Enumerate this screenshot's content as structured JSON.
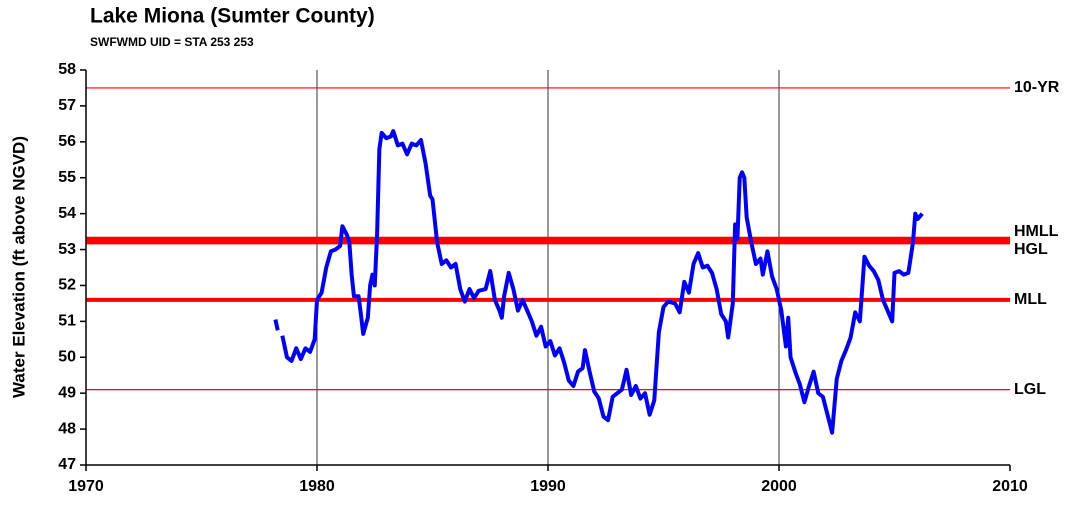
{
  "chart_data": {
    "type": "line",
    "title": "Lake Miona (Sumter County)",
    "subtitle": "SWFWMD UID = STA 253 253",
    "ylabel": "Water Elevation (ft above NGVD)",
    "xlim": [
      1970,
      2010
    ],
    "xticks": [
      1970,
      1980,
      1990,
      2000,
      2010
    ],
    "ylim": [
      47,
      58
    ],
    "yticks": [
      47,
      48,
      49,
      50,
      51,
      52,
      53,
      54,
      55,
      56,
      57,
      58
    ],
    "grid": "x",
    "reference_lines": [
      {
        "label": "10-YR",
        "value": 57.5,
        "color": "#ff0000",
        "thick": false
      },
      {
        "label": "HMLL",
        "value": 53.3,
        "color": "#ff0000",
        "thick": true
      },
      {
        "label": "HGL",
        "value": 53.2,
        "color": "#ff0000",
        "thick": true
      },
      {
        "label": "MLL",
        "value": 51.6,
        "color": "#ff0000",
        "thick": true
      },
      {
        "label": "LGL",
        "value": 49.1,
        "color": "#ff0000",
        "thick": false
      }
    ],
    "x": [
      1978.2,
      1978.3,
      1978.4,
      1978.5,
      1978.7,
      1978.9,
      1979.1,
      1979.3,
      1979.5,
      1979.7,
      1979.9,
      1980.0,
      1980.2,
      1980.4,
      1980.6,
      1980.8,
      1981.0,
      1981.1,
      1981.3,
      1981.4,
      1981.5,
      1981.6,
      1981.8,
      1981.9,
      1982.0,
      1982.2,
      1982.3,
      1982.4,
      1982.5,
      1982.6,
      1982.7,
      1982.8,
      1983.0,
      1983.2,
      1983.3,
      1983.5,
      1983.7,
      1983.9,
      1984.0,
      1984.1,
      1984.3,
      1984.5,
      1984.7,
      1984.9,
      1985.0,
      1985.2,
      1985.4,
      1985.6,
      1985.8,
      1986.0,
      1986.2,
      1986.4,
      1986.6,
      1986.8,
      1987.0,
      1987.3,
      1987.5,
      1987.7,
      1987.9,
      1988.0,
      1988.1,
      1988.3,
      1988.5,
      1988.7,
      1988.9,
      1989.1,
      1989.3,
      1989.5,
      1989.7,
      1989.9,
      1990.1,
      1990.3,
      1990.5,
      1990.7,
      1990.9,
      1991.1,
      1991.3,
      1991.5,
      1991.6,
      1991.8,
      1992.0,
      1992.2,
      1992.4,
      1992.6,
      1992.8,
      1993.0,
      1993.2,
      1993.4,
      1993.6,
      1993.8,
      1994.0,
      1994.2,
      1994.4,
      1994.6,
      1994.8,
      1995.0,
      1995.2,
      1995.5,
      1995.7,
      1995.9,
      1996.1,
      1996.3,
      1996.5,
      1996.7,
      1996.9,
      1997.1,
      1997.3,
      1997.5,
      1997.7,
      1997.8,
      1998.0,
      1998.1,
      1998.2,
      1998.3,
      1998.4,
      1998.5,
      1998.6,
      1998.8,
      1999.0,
      1999.2,
      1999.3,
      1999.5,
      1999.7,
      1999.9,
      2000.1,
      2000.3,
      2000.4,
      2000.5,
      2000.7,
      2000.9,
      2001.1,
      2001.3,
      2001.5,
      2001.7,
      2001.9,
      2002.1,
      2002.3,
      2002.5,
      2002.7,
      2002.9,
      2003.1,
      2003.3,
      2003.5,
      2003.7,
      2003.9,
      2004.1,
      2004.3,
      2004.5,
      2004.7,
      2004.9,
      2005.0,
      2005.2,
      2005.4,
      2005.6,
      2005.8,
      2005.9,
      2006.0,
      2006.2
    ],
    "series": [
      {
        "color": "#0000ff",
        "values": [
          51.05,
          50.75,
          null,
          50.6,
          50.0,
          49.9,
          50.25,
          49.95,
          50.25,
          50.15,
          50.5,
          51.6,
          51.8,
          52.5,
          52.95,
          53.0,
          53.1,
          53.65,
          53.4,
          53.2,
          52.3,
          51.7,
          51.7,
          51.2,
          50.65,
          51.1,
          52.0,
          52.3,
          52.0,
          53.4,
          55.8,
          56.25,
          56.1,
          56.15,
          56.3,
          55.9,
          55.95,
          55.65,
          55.8,
          55.95,
          55.9,
          56.05,
          55.4,
          54.5,
          54.4,
          53.2,
          52.6,
          52.7,
          52.5,
          52.6,
          51.9,
          51.55,
          51.9,
          51.65,
          51.85,
          51.9,
          52.4,
          51.6,
          51.3,
          51.1,
          51.7,
          52.35,
          51.9,
          51.3,
          51.6,
          51.3,
          51.0,
          50.6,
          50.85,
          50.3,
          50.45,
          50.05,
          50.25,
          49.85,
          49.35,
          49.2,
          49.6,
          49.7,
          50.2,
          49.6,
          49.05,
          48.85,
          48.35,
          48.25,
          48.9,
          49.0,
          49.1,
          49.65,
          48.95,
          49.2,
          48.85,
          49.0,
          48.4,
          48.8,
          50.7,
          51.4,
          51.55,
          51.5,
          51.25,
          52.1,
          51.8,
          52.6,
          52.9,
          52.5,
          52.55,
          52.35,
          51.9,
          51.2,
          51.0,
          50.55,
          51.5,
          53.7,
          53.3,
          55.0,
          55.15,
          55.0,
          53.9,
          53.2,
          52.6,
          52.75,
          52.3,
          52.95,
          52.25,
          51.9,
          51.3,
          50.3,
          51.1,
          50.0,
          49.6,
          49.25,
          48.75,
          49.2,
          49.6,
          49.0,
          48.9,
          48.4,
          47.9,
          49.4,
          49.9,
          50.2,
          50.55,
          51.25,
          51.0,
          52.8,
          52.55,
          52.4,
          52.15,
          51.6,
          51.3,
          51.0,
          52.35,
          52.4,
          52.3,
          52.35,
          53.2,
          54.0,
          53.85,
          54.0
        ]
      }
    ]
  }
}
